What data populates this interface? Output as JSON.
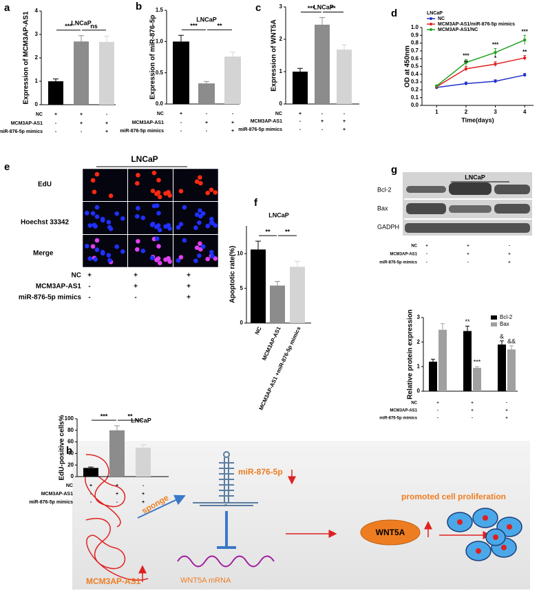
{
  "panel_labels": [
    "a",
    "b",
    "c",
    "d",
    "e",
    "f",
    "g",
    "h"
  ],
  "chart_data": [
    {
      "type": "bar",
      "title": "LNCaP",
      "ylabel": "Expression of MCM3AP-AS1",
      "values": [
        1.0,
        2.7,
        2.68
      ],
      "errors": [
        0.1,
        0.25,
        0.25
      ],
      "colors": [
        "#000000",
        "#8c8c8c",
        "#d4d4d4"
      ],
      "ylim": [
        0,
        4
      ],
      "yticks": [
        0,
        1,
        2,
        3,
        4
      ],
      "annotations": [
        "***",
        "ns"
      ],
      "conditions": [
        {
          "label": "NC",
          "signs": [
            "+",
            "+",
            "-"
          ]
        },
        {
          "label": "MCM3AP-AS1",
          "signs": [
            "-",
            "+",
            "+"
          ]
        },
        {
          "label": "miR-876-5p mimics",
          "signs": [
            "-",
            "-",
            "+"
          ]
        }
      ]
    },
    {
      "type": "bar",
      "title": "LNCaP",
      "ylabel": "Expression of miR-876-5p",
      "values": [
        1.0,
        0.33,
        0.76
      ],
      "errors": [
        0.1,
        0.03,
        0.07
      ],
      "colors": [
        "#000000",
        "#8c8c8c",
        "#d4d4d4"
      ],
      "ylim": [
        0,
        1.5
      ],
      "yticks": [
        {
          "value": 0,
          "label": "0.0"
        },
        0.5,
        {
          "value": 1,
          "label": "1.0"
        },
        1.5
      ],
      "annotations": [
        "***",
        "**"
      ],
      "conditions": [
        {
          "label": "NC",
          "signs": [
            "+",
            "-",
            "-"
          ]
        },
        {
          "label": "MCM3AP-AS1",
          "signs": [
            "-",
            "+",
            "+"
          ]
        },
        {
          "label": "miR-876-5p mimics",
          "signs": [
            "-",
            "-",
            "+"
          ]
        }
      ]
    },
    {
      "type": "bar",
      "title": "LNCaP",
      "ylabel": "Expression of WNT5A",
      "values": [
        1.0,
        2.45,
        1.68
      ],
      "errors": [
        0.1,
        0.22,
        0.15
      ],
      "colors": [
        "#000000",
        "#8c8c8c",
        "#d4d4d4"
      ],
      "ylim": [
        0,
        3
      ],
      "yticks": [
        0,
        1,
        2,
        3
      ],
      "annotations": [
        "***",
        "**"
      ],
      "conditions": [
        {
          "label": "NC",
          "signs": [
            "+",
            "-",
            "-"
          ]
        },
        {
          "label": "MCM3AP-AS1",
          "signs": [
            "-",
            "+",
            "+"
          ]
        },
        {
          "label": "miR-876-5p mimics",
          "signs": [
            "-",
            "-",
            "+"
          ]
        }
      ]
    },
    {
      "type": "line",
      "legend_title": "LNCaP",
      "xlabel": "Time(days)",
      "ylabel": "OD at 450nm",
      "x": [
        1,
        2,
        3,
        4
      ],
      "xlim": [
        0.5,
        4.3
      ],
      "xticks": [
        1,
        2,
        3,
        4
      ],
      "ylim": [
        0,
        1
      ],
      "yticks": [
        {
          "value": 0,
          "label": "0.0"
        },
        0.1,
        0.2,
        0.3,
        0.4,
        0.5,
        0.6,
        0.7,
        0.8,
        0.9,
        {
          "value": 1,
          "label": "1.0"
        }
      ],
      "series": [
        {
          "name": "NC",
          "color": "#2030c8",
          "values": [
            0.23,
            0.28,
            0.31,
            0.39
          ],
          "errors": [
            0.01,
            0.02,
            0.02,
            0.02
          ]
        },
        {
          "name": "MCM3AP-AS1/miR-876-5p mimics",
          "color": "#e02020",
          "values": [
            0.24,
            0.47,
            0.53,
            0.61
          ],
          "errors": [
            0.01,
            0.03,
            0.03,
            0.03
          ]
        },
        {
          "name": "MCM3AP-AS1/NC",
          "color": "#20a020",
          "values": [
            0.25,
            0.55,
            0.68,
            0.84
          ],
          "errors": [
            0.01,
            0.04,
            0.05,
            0.06
          ]
        }
      ],
      "annotations": [
        "***",
        "**",
        "***",
        "*",
        "***",
        "**"
      ]
    },
    {
      "type": "bar",
      "title": "LNCaP",
      "ylabel": "EdU-positive cells%",
      "values": [
        15,
        80,
        50
      ],
      "errors": [
        1.5,
        8,
        5
      ],
      "colors": [
        "#000000",
        "#8c8c8c",
        "#d4d4d4"
      ],
      "ylim": [
        0,
        100
      ],
      "yticks": [
        0,
        20,
        40,
        60,
        80,
        100
      ],
      "annotations": [
        "***",
        "**"
      ],
      "conditions": [
        {
          "label": "NC",
          "signs": [
            "+",
            "+",
            "-"
          ]
        },
        {
          "label": "MCM3AP-AS1",
          "signs": [
            "-",
            "+",
            "+"
          ]
        },
        {
          "label": "miR-876-5p mimics",
          "signs": [
            "-",
            "-",
            "+"
          ]
        }
      ]
    },
    {
      "type": "bar",
      "title": "LNCaP",
      "ylabel": "Apoptotic rate(%)",
      "categories": [
        "NC",
        "MCM3AP-AS1",
        "MCM3AP-AS1 +miR-876-5p mimics"
      ],
      "values": [
        10.6,
        5.4,
        8.1
      ],
      "errors": [
        1.2,
        0.6,
        0.8
      ],
      "colors": [
        "#000000",
        "#8c8c8c",
        "#d4d4d4"
      ],
      "ylim": [
        0,
        14
      ],
      "yticks": [
        0,
        5,
        10
      ],
      "annotations": [
        "**",
        "**"
      ]
    },
    {
      "type": "grouped_bar",
      "ylabel": "Relative protein expression",
      "series": [
        {
          "name": "Bcl-2",
          "color": "#000000",
          "values": [
            1.2,
            2.45,
            1.9
          ],
          "errors": [
            0.1,
            0.2,
            0.15
          ]
        },
        {
          "name": "Bax",
          "color": "#a0a0a0",
          "values": [
            2.5,
            0.95,
            1.7
          ],
          "errors": [
            0.25,
            0.05,
            0.15
          ]
        }
      ],
      "ylim": [
        0,
        3
      ],
      "yticks": [
        0,
        1,
        2,
        3
      ],
      "annotations": [
        "**",
        "***",
        "&",
        "&&"
      ],
      "conditions": [
        {
          "label": "NC",
          "signs": [
            "+",
            "+",
            "-"
          ]
        },
        {
          "label": "MCM3AP-AS1",
          "signs": [
            "-",
            "+",
            "+"
          ]
        },
        {
          "label": "miR-876-5p mimics",
          "signs": [
            "-",
            "-",
            "+"
          ]
        }
      ]
    }
  ],
  "edu_staining": {
    "title": "LNCaP",
    "rows": [
      "EdU",
      "Hoechst 33342",
      "Merge"
    ],
    "conditions": [
      {
        "label": "NC",
        "signs": [
          "+",
          "+",
          "+"
        ]
      },
      {
        "label": "MCM3AP-AS1",
        "signs": [
          "-",
          "+",
          "+"
        ]
      },
      {
        "label": "miR-876-5p mimics",
        "signs": [
          "-",
          "-",
          "+"
        ]
      }
    ]
  },
  "western_blot": {
    "title": "LNCaP",
    "bands": [
      "Bcl-2",
      "Bax",
      "GADPH"
    ],
    "conditions": [
      {
        "label": "NC",
        "signs": [
          "+",
          "+",
          "-"
        ]
      },
      {
        "label": "MCM3AP-AS1",
        "signs": [
          "-",
          "+",
          "+"
        ]
      },
      {
        "label": "miR-876-5p mimics",
        "signs": [
          "-",
          "-",
          "+"
        ]
      }
    ]
  },
  "diagram": {
    "mirna": "miR-876-5p",
    "sponge": "sponge",
    "lncrna": "MCM3AP-AS1",
    "target": "WNT5A",
    "target_mrna": "WNT5A mRNA",
    "outcome": "promoted cell proliferation"
  }
}
